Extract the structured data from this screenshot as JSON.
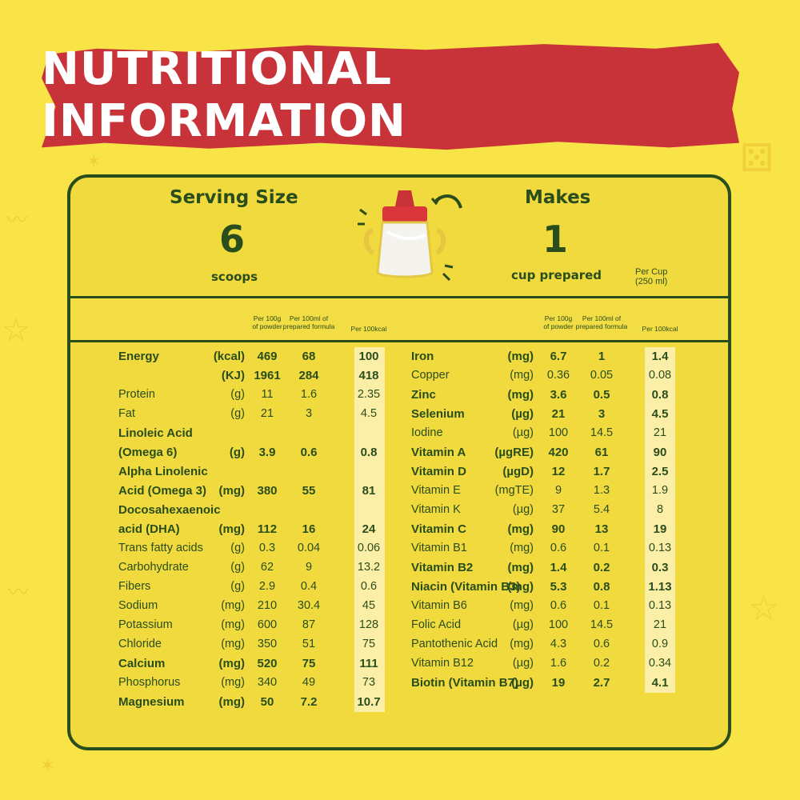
{
  "title": "NUTRITIONAL INFORMATION",
  "serving": {
    "label": "Serving Size",
    "value": "6",
    "unit": "scoops"
  },
  "makes": {
    "label": "Makes",
    "value": "1",
    "unit": "cup prepared"
  },
  "per_cup": {
    "line1": "Per Cup",
    "line2": "(250 ml)"
  },
  "column_headers": {
    "per100g": [
      "Per 100g",
      "of powder"
    ],
    "per100ml": [
      "Per 100ml of",
      "prepared formula"
    ],
    "per100kcal": [
      "Per 100kcal"
    ]
  },
  "left_rows": [
    {
      "name": "Energy",
      "unit": "(kcal)",
      "v1": "469",
      "v2": "68",
      "v3": "100",
      "bold": true
    },
    {
      "name": "",
      "unit": "(KJ)",
      "v1": "1961",
      "v2": "284",
      "v3": "418",
      "bold": true
    },
    {
      "name": "Protein",
      "unit": "(g)",
      "v1": "11",
      "v2": "1.6",
      "v3": "2.35",
      "bold": false
    },
    {
      "name": "Fat",
      "unit": "(g)",
      "v1": "21",
      "v2": "3",
      "v3": "4.5",
      "bold": false
    },
    {
      "name": "Linoleic Acid",
      "unit": "",
      "v1": "",
      "v2": "",
      "v3": "",
      "bold": true
    },
    {
      "name": "(Omega 6)",
      "unit": "(g)",
      "v1": "3.9",
      "v2": "0.6",
      "v3": "0.8",
      "bold": true
    },
    {
      "name": "Alpha Linolenic",
      "unit": "",
      "v1": "",
      "v2": "",
      "v3": "",
      "bold": true
    },
    {
      "name": "Acid (Omega 3)",
      "unit": "(mg)",
      "v1": "380",
      "v2": "55",
      "v3": "81",
      "bold": true
    },
    {
      "name": "Docosahexaenoic",
      "unit": "",
      "v1": "",
      "v2": "",
      "v3": "",
      "bold": true
    },
    {
      "name": "acid (DHA)",
      "unit": "(mg)",
      "v1": "112",
      "v2": "16",
      "v3": "24",
      "bold": true
    },
    {
      "name": "Trans fatty acids",
      "unit": "(g)",
      "v1": "0.3",
      "v2": "0.04",
      "v3": "0.06",
      "bold": false
    },
    {
      "name": "Carbohydrate",
      "unit": "(g)",
      "v1": "62",
      "v2": "9",
      "v3": "13.2",
      "bold": false
    },
    {
      "name": " Fibers",
      "unit": "(g)",
      "v1": "2.9",
      "v2": "0.4",
      "v3": "0.6",
      "bold": false
    },
    {
      "name": "Sodium",
      "unit": "(mg)",
      "v1": "210",
      "v2": "30.4",
      "v3": "45",
      "bold": false
    },
    {
      "name": "Potassium",
      "unit": "(mg)",
      "v1": "600",
      "v2": "87",
      "v3": "128",
      "bold": false
    },
    {
      "name": "Chloride",
      "unit": "(mg)",
      "v1": "350",
      "v2": "51",
      "v3": "75",
      "bold": false
    },
    {
      "name": "Calcium",
      "unit": "(mg)",
      "v1": "520",
      "v2": "75",
      "v3": "111",
      "bold": true
    },
    {
      "name": "Phosphorus",
      "unit": "(mg)",
      "v1": "340",
      "v2": "49",
      "v3": "73",
      "bold": false
    },
    {
      "name": "Magnesium",
      "unit": "(mg)",
      "v1": "50",
      "v2": "7.2",
      "v3": "10.7",
      "bold": true
    }
  ],
  "right_rows": [
    {
      "name": "Iron",
      "unit": "(mg)",
      "v1": "6.7",
      "v2": "1",
      "v3": "1.4",
      "bold": true
    },
    {
      "name": "Copper",
      "unit": "(mg)",
      "v1": "0.36",
      "v2": "0.05",
      "v3": "0.08",
      "bold": false
    },
    {
      "name": "Zinc",
      "unit": "(mg)",
      "v1": "3.6",
      "v2": "0.5",
      "v3": "0.8",
      "bold": true
    },
    {
      "name": "Selenium",
      "unit": "(µg)",
      "v1": "21",
      "v2": "3",
      "v3": "4.5",
      "bold": true
    },
    {
      "name": "Iodine",
      "unit": "(µg)",
      "v1": "100",
      "v2": "14.5",
      "v3": "21",
      "bold": false
    },
    {
      "name": "Vitamin A",
      "unit": "(µgRE)",
      "v1": "420",
      "v2": "61",
      "v3": "90",
      "bold": true
    },
    {
      "name": "Vitamin D",
      "unit": "(µgD)",
      "v1": "12",
      "v2": "1.7",
      "v3": "2.5",
      "bold": true
    },
    {
      "name": "Vitamin E",
      "unit": "(mgTE)",
      "v1": "9",
      "v2": "1.3",
      "v3": "1.9",
      "bold": false
    },
    {
      "name": "Vitamin K",
      "unit": "(µg)",
      "v1": "37",
      "v2": "5.4",
      "v3": "8",
      "bold": false
    },
    {
      "name": "Vitamin C",
      "unit": "(mg)",
      "v1": "90",
      "v2": "13",
      "v3": "19",
      "bold": true
    },
    {
      "name": "Vitamin B1",
      "unit": "(mg)",
      "v1": "0.6",
      "v2": "0.1",
      "v3": "0.13",
      "bold": false
    },
    {
      "name": "Vitamin B2",
      "unit": "(mg)",
      "v1": "1.4",
      "v2": "0.2",
      "v3": "0.3",
      "bold": true
    },
    {
      "name": "Niacin (Vitamin B3)",
      "unit": "(mg)",
      "v1": "5.3",
      "v2": "0.8",
      "v3": "1.13",
      "bold": true
    },
    {
      "name": "Vitamin B6",
      "unit": "(mg)",
      "v1": "0.6",
      "v2": "0.1",
      "v3": "0.13",
      "bold": false
    },
    {
      "name": "Folic Acid",
      "unit": "(µg)",
      "v1": "100",
      "v2": "14.5",
      "v3": "21",
      "bold": false
    },
    {
      "name": "Pantothenic Acid",
      "unit": "(mg)",
      "v1": "4.3",
      "v2": "0.6",
      "v3": "0.9",
      "bold": false
    },
    {
      "name": "Vitamin  B12",
      "unit": "(µg)",
      "v1": "1.6",
      "v2": "0.2",
      "v3": "0.34",
      "bold": false
    },
    {
      "name": "Biotin (Vitamin B7)",
      "unit": "(µg)",
      "v1": "19",
      "v2": "2.7",
      "v3": "4.1",
      "bold": true
    }
  ],
  "colors": {
    "background": "#f9e448",
    "banner": "#c8333a",
    "text": "#2a4d1c",
    "highlight": "#fbeea6"
  }
}
